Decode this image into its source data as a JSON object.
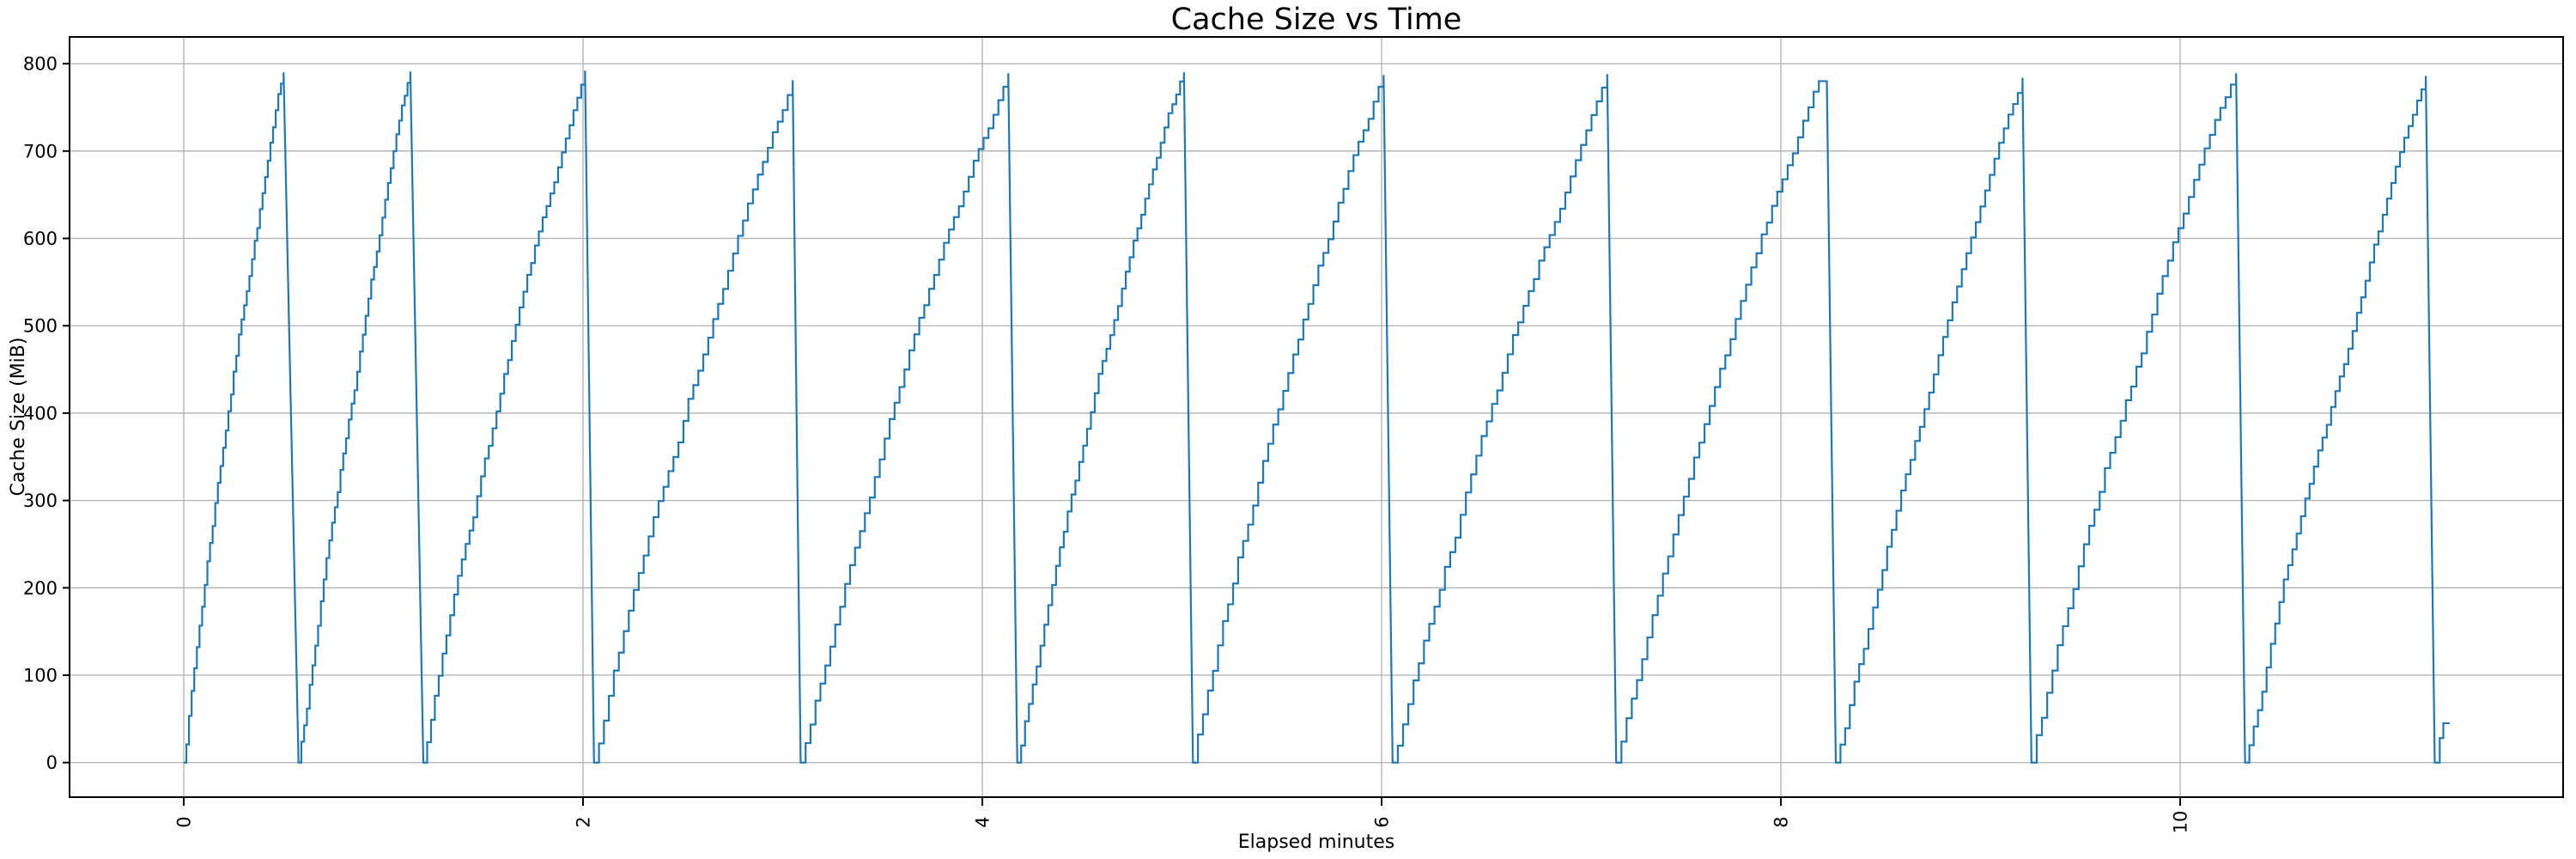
{
  "figure": {
    "background": "#ffffff",
    "title": "Cache Size vs Time"
  },
  "chart_data": {
    "type": "line",
    "title": "Cache Size vs Time",
    "xlabel": "Elapsed minutes",
    "ylabel": "Cache Size (MiB)",
    "x_ticks": [
      0,
      2,
      4,
      6,
      8,
      10
    ],
    "y_ticks": [
      0,
      100,
      200,
      300,
      400,
      500,
      600,
      700,
      800
    ],
    "x_tick_rotation": 90,
    "xlim": [
      -0.572,
      11.918
    ],
    "ylim": [
      -39.6,
      830.6
    ],
    "grid": true,
    "grid_color": "#b0b0b0",
    "spine_color": "#000000",
    "line_color": "#1f77b4",
    "line_width": 2.2,
    "pattern": "repeating sawtooth: staircase rise from 0 MiB to ~790 MiB, then near-vertical drop back to 0",
    "step_mib": 19.5,
    "drop_duration_min": 0.045,
    "teeth": [
      {
        "start": 0.0,
        "peak_t": 0.5,
        "peak": 790
      },
      {
        "start": 0.575,
        "peak_t": 1.135,
        "peak": 791
      },
      {
        "start": 1.2,
        "peak_t": 2.01,
        "peak": 792
      },
      {
        "start": 2.055,
        "peak_t": 3.05,
        "peak": 781
      },
      {
        "start": 3.09,
        "peak_t": 4.13,
        "peak": 789
      },
      {
        "start": 4.175,
        "peak_t": 5.01,
        "peak": 790
      },
      {
        "start": 5.055,
        "peak_t": 6.01,
        "peak": 787
      },
      {
        "start": 6.055,
        "peak_t": 7.13,
        "peak": 788
      },
      {
        "start": 7.175,
        "peak_t": 8.19,
        "peak": 780,
        "flat": 0.04
      },
      {
        "start": 8.275,
        "peak_t": 9.21,
        "peak": 784
      },
      {
        "start": 9.255,
        "peak_t": 10.28,
        "peak": 789
      },
      {
        "start": 10.325,
        "peak_t": 11.23,
        "peak": 786
      }
    ],
    "tail_start": 11.275,
    "tail_points": [
      [
        11.3,
        0
      ],
      [
        11.3,
        28
      ],
      [
        11.318,
        28
      ],
      [
        11.318,
        45
      ],
      [
        11.35,
        45
      ]
    ],
    "series": [
      {
        "name": "cache size",
        "color": "#1f77b4"
      }
    ]
  }
}
